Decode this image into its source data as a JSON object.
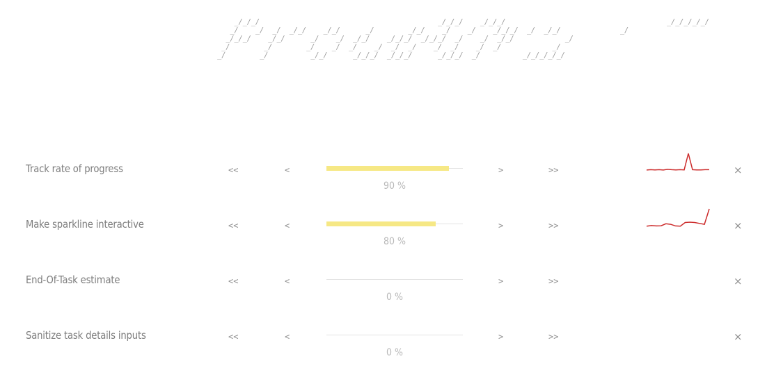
{
  "banner_art": "      _/_/_/                                          _/_/_/    _/_/_/                                      _/_/_/_/_/\n     _/    _/  _/  _/_/    _/_/      _/        _/_/    _/    _/    _/_/_/  _/  _/_/              _/\n    _/_/_/    _/_/      _/    _/  _/_/    _/_/_/  _/_/_/  _/    _/  _/_/            _/\n   _/        _/        _/    _/  _/    _/  _/  _/    _/  _/    _/  _/            _/\n  _/        _/          _/_/      _/_/_/  _/_/_/      _/_/_/  _/          _/_/_/_/_/",
  "controls": {
    "first": "<<",
    "prev": "<",
    "next": ">",
    "last": ">>",
    "close": "×"
  },
  "colors": {
    "progress_fill": "#f6e885",
    "progress_track": "#e2e2e2",
    "sparkline": "#cc2a2a"
  },
  "tasks": [
    {
      "name": "Track rate of progress",
      "progress": 90,
      "progress_label": "90 %",
      "sparkline": [
        0.08,
        0.1,
        0.09,
        0.1,
        0.08,
        0.12,
        0.1,
        0.09,
        0.1,
        0.09,
        1.0,
        0.1,
        0.09,
        0.09,
        0.1,
        0.1
      ]
    },
    {
      "name": "Make sparkline interactive",
      "progress": 80,
      "progress_label": "80 %",
      "sparkline": [
        0.05,
        0.08,
        0.06,
        0.07,
        0.18,
        0.15,
        0.06,
        0.05,
        0.25,
        0.27,
        0.25,
        0.2,
        0.15,
        1.0
      ]
    },
    {
      "name": "End-Of-Task estimate",
      "progress": 0,
      "progress_label": "0 %",
      "sparkline": []
    },
    {
      "name": "Sanitize task details inputs",
      "progress": 0,
      "progress_label": "0 %",
      "sparkline": []
    }
  ]
}
